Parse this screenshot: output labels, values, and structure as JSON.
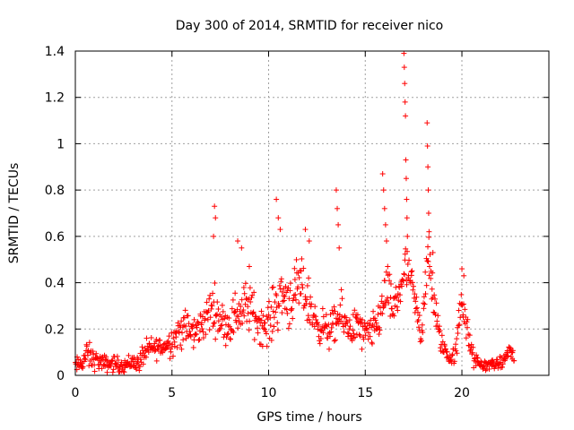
{
  "chart_data": {
    "type": "scatter",
    "title": "Day 300 of 2014, SRMTID for receiver nico",
    "xlabel": "GPS time / hours",
    "ylabel": "SRMTID / TECUs",
    "xlim": [
      0,
      24.5
    ],
    "ylim": [
      0,
      1.4
    ],
    "xticks": [
      0,
      5,
      10,
      15,
      20
    ],
    "xtick_labels": [
      "0",
      "5",
      "10",
      "15",
      "20"
    ],
    "yticks": [
      0,
      0.2,
      0.4,
      0.6,
      0.8,
      1.0,
      1.2,
      1.4
    ],
    "ytick_labels": [
      "0",
      "0.2",
      "0.4",
      "0.6",
      "0.8",
      "1",
      "1.2",
      "1.4"
    ],
    "grid": true,
    "marker": "+",
    "marker_color": "#ff0000",
    "series": [
      {
        "name": "SRMTID",
        "envelope": [
          [
            0.0,
            0.04,
            0.03
          ],
          [
            0.3,
            0.05,
            0.03
          ],
          [
            0.6,
            0.09,
            0.05
          ],
          [
            0.9,
            0.07,
            0.04
          ],
          [
            1.2,
            0.06,
            0.03
          ],
          [
            1.5,
            0.05,
            0.03
          ],
          [
            1.8,
            0.05,
            0.03
          ],
          [
            2.1,
            0.05,
            0.03
          ],
          [
            2.4,
            0.04,
            0.02
          ],
          [
            2.7,
            0.05,
            0.03
          ],
          [
            3.0,
            0.06,
            0.03
          ],
          [
            3.3,
            0.05,
            0.03
          ],
          [
            3.5,
            0.09,
            0.04
          ],
          [
            3.8,
            0.11,
            0.04
          ],
          [
            4.1,
            0.12,
            0.04
          ],
          [
            4.4,
            0.12,
            0.04
          ],
          [
            4.7,
            0.13,
            0.04
          ],
          [
            5.0,
            0.15,
            0.05
          ],
          [
            5.3,
            0.18,
            0.07
          ],
          [
            5.6,
            0.21,
            0.07
          ],
          [
            5.9,
            0.19,
            0.06
          ],
          [
            6.2,
            0.18,
            0.06
          ],
          [
            6.5,
            0.22,
            0.06
          ],
          [
            6.8,
            0.25,
            0.07
          ],
          [
            7.1,
            0.3,
            0.09
          ],
          [
            7.4,
            0.26,
            0.07
          ],
          [
            7.7,
            0.22,
            0.06
          ],
          [
            8.0,
            0.22,
            0.07
          ],
          [
            8.3,
            0.27,
            0.08
          ],
          [
            8.6,
            0.28,
            0.09
          ],
          [
            8.9,
            0.3,
            0.09
          ],
          [
            9.2,
            0.27,
            0.08
          ],
          [
            9.5,
            0.23,
            0.07
          ],
          [
            9.8,
            0.21,
            0.07
          ],
          [
            10.1,
            0.24,
            0.08
          ],
          [
            10.4,
            0.31,
            0.1
          ],
          [
            10.7,
            0.35,
            0.1
          ],
          [
            11.0,
            0.33,
            0.1
          ],
          [
            11.3,
            0.34,
            0.1
          ],
          [
            11.6,
            0.38,
            0.1
          ],
          [
            11.9,
            0.35,
            0.1
          ],
          [
            12.2,
            0.28,
            0.08
          ],
          [
            12.5,
            0.22,
            0.06
          ],
          [
            12.8,
            0.21,
            0.06
          ],
          [
            13.1,
            0.19,
            0.06
          ],
          [
            13.4,
            0.21,
            0.07
          ],
          [
            13.7,
            0.26,
            0.08
          ],
          [
            14.0,
            0.22,
            0.06
          ],
          [
            14.3,
            0.2,
            0.06
          ],
          [
            14.6,
            0.22,
            0.07
          ],
          [
            14.9,
            0.17,
            0.06
          ],
          [
            15.2,
            0.18,
            0.06
          ],
          [
            15.5,
            0.2,
            0.06
          ],
          [
            15.8,
            0.27,
            0.08
          ],
          [
            16.1,
            0.38,
            0.1
          ],
          [
            16.4,
            0.28,
            0.06
          ],
          [
            16.7,
            0.33,
            0.08
          ],
          [
            17.0,
            0.46,
            0.1
          ],
          [
            17.3,
            0.43,
            0.06
          ],
          [
            17.6,
            0.3,
            0.06
          ],
          [
            17.9,
            0.18,
            0.07
          ],
          [
            18.2,
            0.5,
            0.12
          ],
          [
            18.5,
            0.36,
            0.1
          ],
          [
            18.8,
            0.18,
            0.05
          ],
          [
            19.1,
            0.11,
            0.04
          ],
          [
            19.4,
            0.07,
            0.02
          ],
          [
            19.7,
            0.1,
            0.04
          ],
          [
            20.0,
            0.36,
            0.1
          ],
          [
            20.3,
            0.17,
            0.06
          ],
          [
            20.6,
            0.07,
            0.03
          ],
          [
            20.9,
            0.05,
            0.02
          ],
          [
            21.2,
            0.04,
            0.02
          ],
          [
            21.5,
            0.05,
            0.02
          ],
          [
            21.8,
            0.05,
            0.02
          ],
          [
            22.1,
            0.05,
            0.02
          ],
          [
            22.4,
            0.11,
            0.04
          ],
          [
            22.7,
            0.08,
            0.03
          ]
        ],
        "spikes": [
          [
            7.2,
            0.73
          ],
          [
            7.25,
            0.68
          ],
          [
            7.15,
            0.6
          ],
          [
            8.4,
            0.58
          ],
          [
            8.6,
            0.55
          ],
          [
            9.0,
            0.47
          ],
          [
            10.4,
            0.76
          ],
          [
            10.5,
            0.68
          ],
          [
            10.6,
            0.63
          ],
          [
            11.9,
            0.63
          ],
          [
            12.1,
            0.58
          ],
          [
            13.5,
            0.8
          ],
          [
            13.55,
            0.72
          ],
          [
            13.6,
            0.65
          ],
          [
            13.65,
            0.55
          ],
          [
            15.9,
            0.87
          ],
          [
            15.95,
            0.8
          ],
          [
            16.0,
            0.72
          ],
          [
            16.05,
            0.65
          ],
          [
            16.1,
            0.58
          ],
          [
            17.0,
            1.39
          ],
          [
            17.02,
            1.33
          ],
          [
            17.04,
            1.26
          ],
          [
            17.06,
            1.18
          ],
          [
            17.08,
            1.12
          ],
          [
            17.1,
            0.93
          ],
          [
            17.12,
            0.85
          ],
          [
            17.14,
            0.76
          ],
          [
            17.16,
            0.68
          ],
          [
            17.18,
            0.6
          ],
          [
            18.2,
            1.09
          ],
          [
            18.22,
            0.99
          ],
          [
            18.24,
            0.9
          ],
          [
            18.26,
            0.8
          ],
          [
            18.28,
            0.7
          ],
          [
            18.3,
            0.62
          ],
          [
            18.5,
            0.53
          ],
          [
            20.0,
            0.46
          ],
          [
            20.1,
            0.43
          ]
        ]
      }
    ]
  }
}
